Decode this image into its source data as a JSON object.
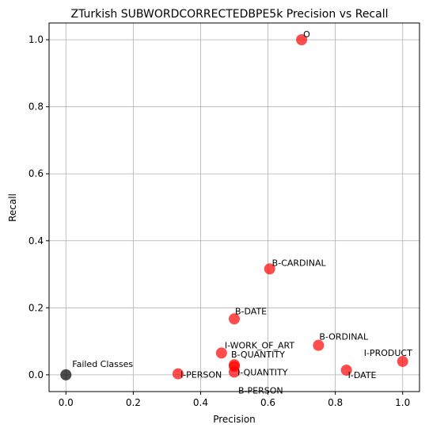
{
  "chart_data": {
    "type": "scatter",
    "title": "ZTurkish SUBWORDCORRECTEDBPE5k Precision vs Recall",
    "xlabel": "Precision",
    "ylabel": "Recall",
    "xlim": [
      -0.05,
      1.05
    ],
    "ylim": [
      -0.05,
      1.05
    ],
    "xticks": [
      0.0,
      0.2,
      0.4,
      0.6,
      0.8,
      1.0
    ],
    "yticks": [
      0.0,
      0.2,
      0.4,
      0.6,
      0.8,
      1.0
    ],
    "xtick_labels": [
      "0.0",
      "0.2",
      "0.4",
      "0.6",
      "0.8",
      "1.0"
    ],
    "ytick_labels": [
      "0.0",
      "0.2",
      "0.4",
      "0.6",
      "0.8",
      "1.0"
    ],
    "grid": true,
    "colors": {
      "success": "#ff0000",
      "failed": "#000000"
    },
    "points": [
      {
        "label": "O",
        "x": 0.7,
        "y": 1.0,
        "status": "success"
      },
      {
        "label": "B-CARDINAL",
        "x": 0.605,
        "y": 0.316,
        "status": "success"
      },
      {
        "label": "B-DATE",
        "x": 0.5,
        "y": 0.167,
        "status": "success"
      },
      {
        "label": "B-ORDINAL",
        "x": 0.75,
        "y": 0.088,
        "status": "success"
      },
      {
        "label": "I-PRODUCT",
        "x": 1.0,
        "y": 0.04,
        "status": "success"
      },
      {
        "label": "I-WORK_OF_ART",
        "x": 0.462,
        "y": 0.065,
        "status": "success"
      },
      {
        "label": "B-QUANTITY",
        "x": 0.5,
        "y": 0.03,
        "status": "success"
      },
      {
        "label": "I-QUANTITY",
        "x": 0.5,
        "y": 0.025,
        "status": "success"
      },
      {
        "label": "B-PERSON",
        "x": 0.5,
        "y": 0.008,
        "status": "success"
      },
      {
        "label": "I-DATE",
        "x": 0.833,
        "y": 0.014,
        "status": "success"
      },
      {
        "label": "I-PERSON",
        "x": 0.333,
        "y": 0.003,
        "status": "success"
      },
      {
        "label": "Failed Classes",
        "x": 0.0,
        "y": 0.0,
        "status": "failed"
      }
    ]
  }
}
